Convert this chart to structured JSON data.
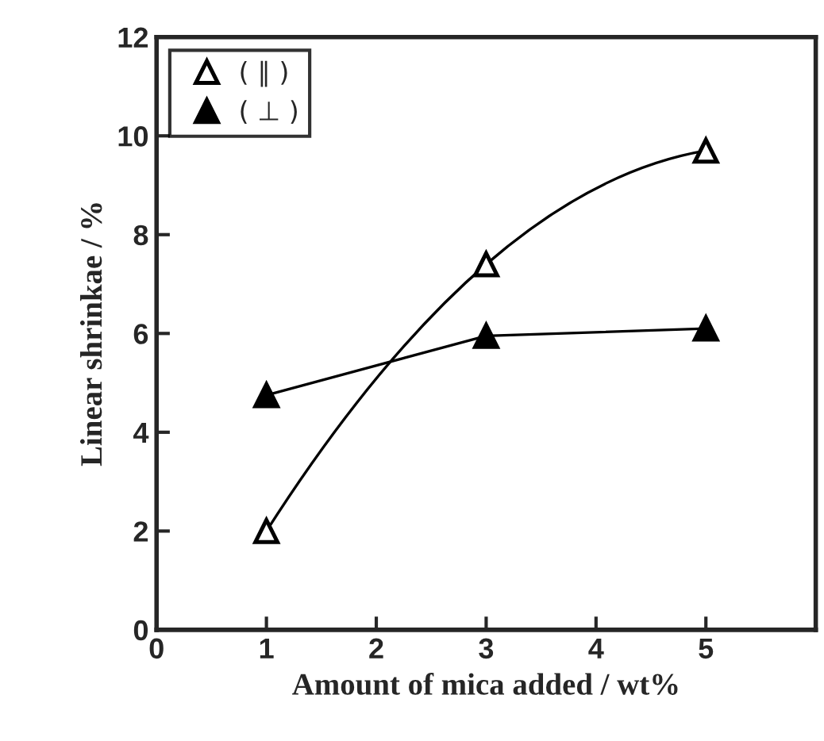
{
  "chart_data": {
    "type": "line",
    "x": [
      1,
      3,
      5
    ],
    "series": [
      {
        "name": "( ∥ )",
        "color": "#000000",
        "values": [
          2.0,
          7.4,
          9.7
        ]
      },
      {
        "name": "( ⊥ )",
        "color": "#000000",
        "values": [
          4.75,
          5.95,
          6.1
        ]
      }
    ],
    "xlabel": "Amount of mica added / wt%",
    "ylabel": "Linear shrinkae / %",
    "xlim": [
      0,
      6
    ],
    "ylim": [
      0,
      12
    ],
    "xticks": [
      0,
      1,
      2,
      3,
      4,
      5
    ],
    "yticks": [
      0,
      2,
      4,
      6,
      8,
      10,
      12
    ],
    "marker": "triangle",
    "line_style": "solid",
    "legend": "top left",
    "grid": false
  }
}
